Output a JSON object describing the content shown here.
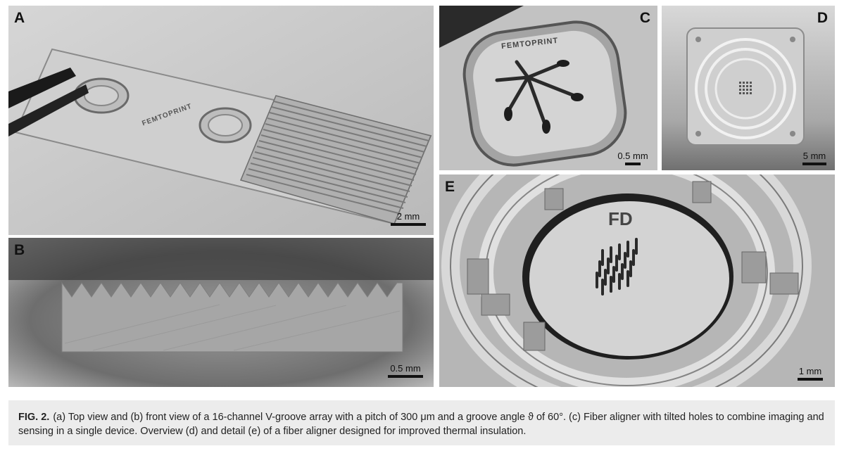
{
  "panels": {
    "a": {
      "label": "A",
      "scale": "2 mm",
      "logo_text": "FEMTOPRINT"
    },
    "b": {
      "label": "B",
      "scale": "0.5 mm"
    },
    "c": {
      "label": "C",
      "scale": "0.5 mm",
      "logo_text": "FEMTOPRINT"
    },
    "d": {
      "label": "D",
      "scale": "5 mm"
    },
    "e": {
      "label": "E",
      "scale": "1 mm"
    }
  },
  "caption": {
    "fig_label": "FIG. 2.",
    "text": "(a) Top view and (b) front view of a 16-channel V-groove array with a pitch of 300 μm and a groove angle ϑ of 60°. (c) Fiber aligner with tilted holes to combine imaging and sensing in a single device. Overview (d) and detail (e) of a fiber aligner designed for improved thermal insulation."
  },
  "colors": {
    "caption_bg": "#ececec",
    "photo_bg": "#c6c6c6"
  }
}
